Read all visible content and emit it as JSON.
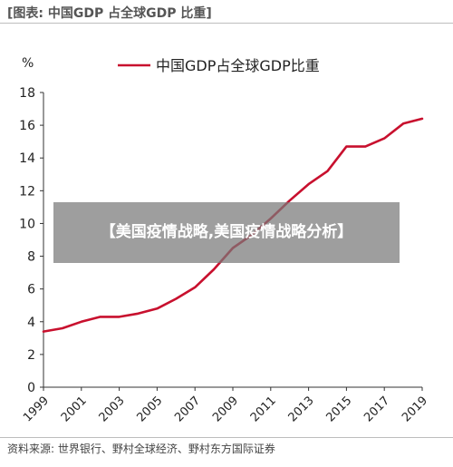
{
  "caption": "[图表: 中国GDP 占全球GDP 比重]",
  "source": "资料来源: 世界银行、野村全球经济、野村东方国际证券",
  "overlay_text": "【美国疫情战略,美国疫情战略分析】",
  "chart_data": {
    "type": "line",
    "title": "",
    "ylabel": "%",
    "xlabel": "",
    "xlim": [
      1999,
      2019
    ],
    "ylim": [
      0,
      18
    ],
    "y_ticks": [
      0,
      2,
      4,
      6,
      8,
      10,
      12,
      14,
      16,
      18
    ],
    "x_ticks": [
      1999,
      2001,
      2003,
      2005,
      2007,
      2009,
      2011,
      2013,
      2015,
      2017,
      2019
    ],
    "grid": false,
    "legend_position": "top",
    "series": [
      {
        "name": "中国GDP占全球GDP比重",
        "color": "#c8102e",
        "x": [
          1999,
          2000,
          2001,
          2002,
          2003,
          2004,
          2005,
          2006,
          2007,
          2008,
          2009,
          2010,
          2011,
          2012,
          2013,
          2014,
          2015,
          2016,
          2017,
          2018,
          2019
        ],
        "y": [
          3.4,
          3.6,
          4.0,
          4.3,
          4.3,
          4.5,
          4.8,
          5.4,
          6.1,
          7.2,
          8.5,
          9.3,
          10.3,
          11.4,
          12.4,
          13.2,
          14.7,
          14.7,
          15.2,
          16.1,
          16.4
        ]
      }
    ]
  }
}
